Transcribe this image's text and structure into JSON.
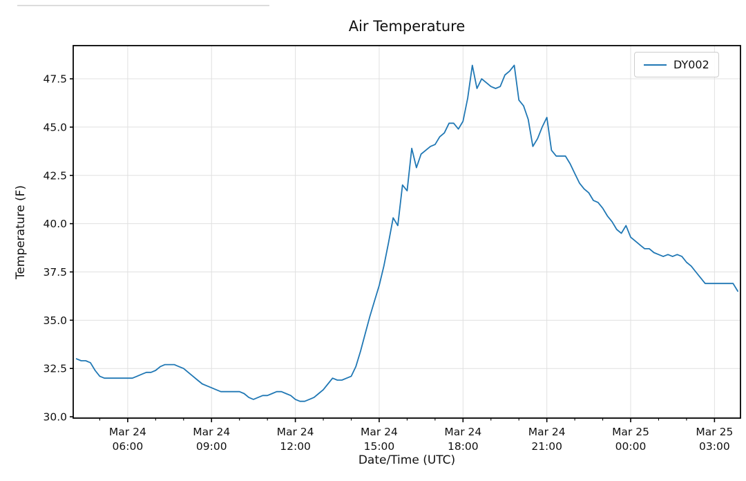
{
  "chart_data": {
    "type": "line",
    "title": "Air Temperature",
    "xlabel": "Date/Time (UTC)",
    "ylabel": "Temperature (F)",
    "grid": true,
    "background": "#ffffff",
    "grid_color": "#e0e0e0",
    "spine_color": "#000000",
    "legend": {
      "position": "upper right",
      "label": "DY002",
      "line_color": "#1f77b4"
    },
    "ylim": [
      29.93,
      49.22
    ],
    "yticks": [
      30.0,
      32.5,
      35.0,
      37.5,
      40.0,
      42.5,
      45.0,
      47.5
    ],
    "xlim_hours_from_mar24_0000": [
      4.05,
      27.93
    ],
    "x_minor_tick_interval_hours": 1,
    "xticks": [
      {
        "hours": 6,
        "date": "Mar 24",
        "time": "06:00"
      },
      {
        "hours": 9,
        "date": "Mar 24",
        "time": "09:00"
      },
      {
        "hours": 12,
        "date": "Mar 24",
        "time": "12:00"
      },
      {
        "hours": 15,
        "date": "Mar 24",
        "time": "15:00"
      },
      {
        "hours": 18,
        "date": "Mar 24",
        "time": "18:00"
      },
      {
        "hours": 21,
        "date": "Mar 24",
        "time": "21:00"
      },
      {
        "hours": 24,
        "date": "Mar 25",
        "time": "00:00"
      },
      {
        "hours": 27,
        "date": "Mar 25",
        "time": "03:00"
      }
    ],
    "series": [
      {
        "name": "DY002",
        "color": "#1f77b4",
        "start": "Mar 24 04:10 UTC",
        "start_hours_from_mar24_0000": 4.1667,
        "interval_minutes": 10,
        "values": [
          33.0,
          32.9,
          32.9,
          32.8,
          32.4,
          32.1,
          32.0,
          32.0,
          32.0,
          32.0,
          32.0,
          32.0,
          32.0,
          32.1,
          32.2,
          32.3,
          32.3,
          32.4,
          32.6,
          32.7,
          32.7,
          32.7,
          32.6,
          32.5,
          32.3,
          32.1,
          31.9,
          31.7,
          31.6,
          31.5,
          31.4,
          31.3,
          31.3,
          31.3,
          31.3,
          31.3,
          31.2,
          31.0,
          30.9,
          31.0,
          31.1,
          31.1,
          31.2,
          31.3,
          31.3,
          31.2,
          31.1,
          30.9,
          30.8,
          30.8,
          30.9,
          31.0,
          31.2,
          31.4,
          31.7,
          32.0,
          31.9,
          31.9,
          32.0,
          32.1,
          32.6,
          33.4,
          34.3,
          35.2,
          36.0,
          36.8,
          37.8,
          39.0,
          40.3,
          39.9,
          42.0,
          41.7,
          43.9,
          42.9,
          43.6,
          43.8,
          44.0,
          44.1,
          44.5,
          44.7,
          45.2,
          45.2,
          44.9,
          45.3,
          46.5,
          48.2,
          47.0,
          47.5,
          47.3,
          47.1,
          47.0,
          47.1,
          47.7,
          47.9,
          48.2,
          46.4,
          46.1,
          45.4,
          44.0,
          44.4,
          45.0,
          45.5,
          43.8,
          43.5,
          43.5,
          43.5,
          43.1,
          42.6,
          42.1,
          41.8,
          41.6,
          41.2,
          41.1,
          40.8,
          40.4,
          40.1,
          39.7,
          39.5,
          39.9,
          39.3,
          39.1,
          38.9,
          38.7,
          38.7,
          38.5,
          38.4,
          38.3,
          38.4,
          38.3,
          38.4,
          38.3,
          38.0,
          37.8,
          37.5,
          37.2,
          36.9,
          36.9,
          36.9,
          36.9,
          36.9,
          36.9,
          36.9,
          36.5
        ]
      }
    ]
  }
}
